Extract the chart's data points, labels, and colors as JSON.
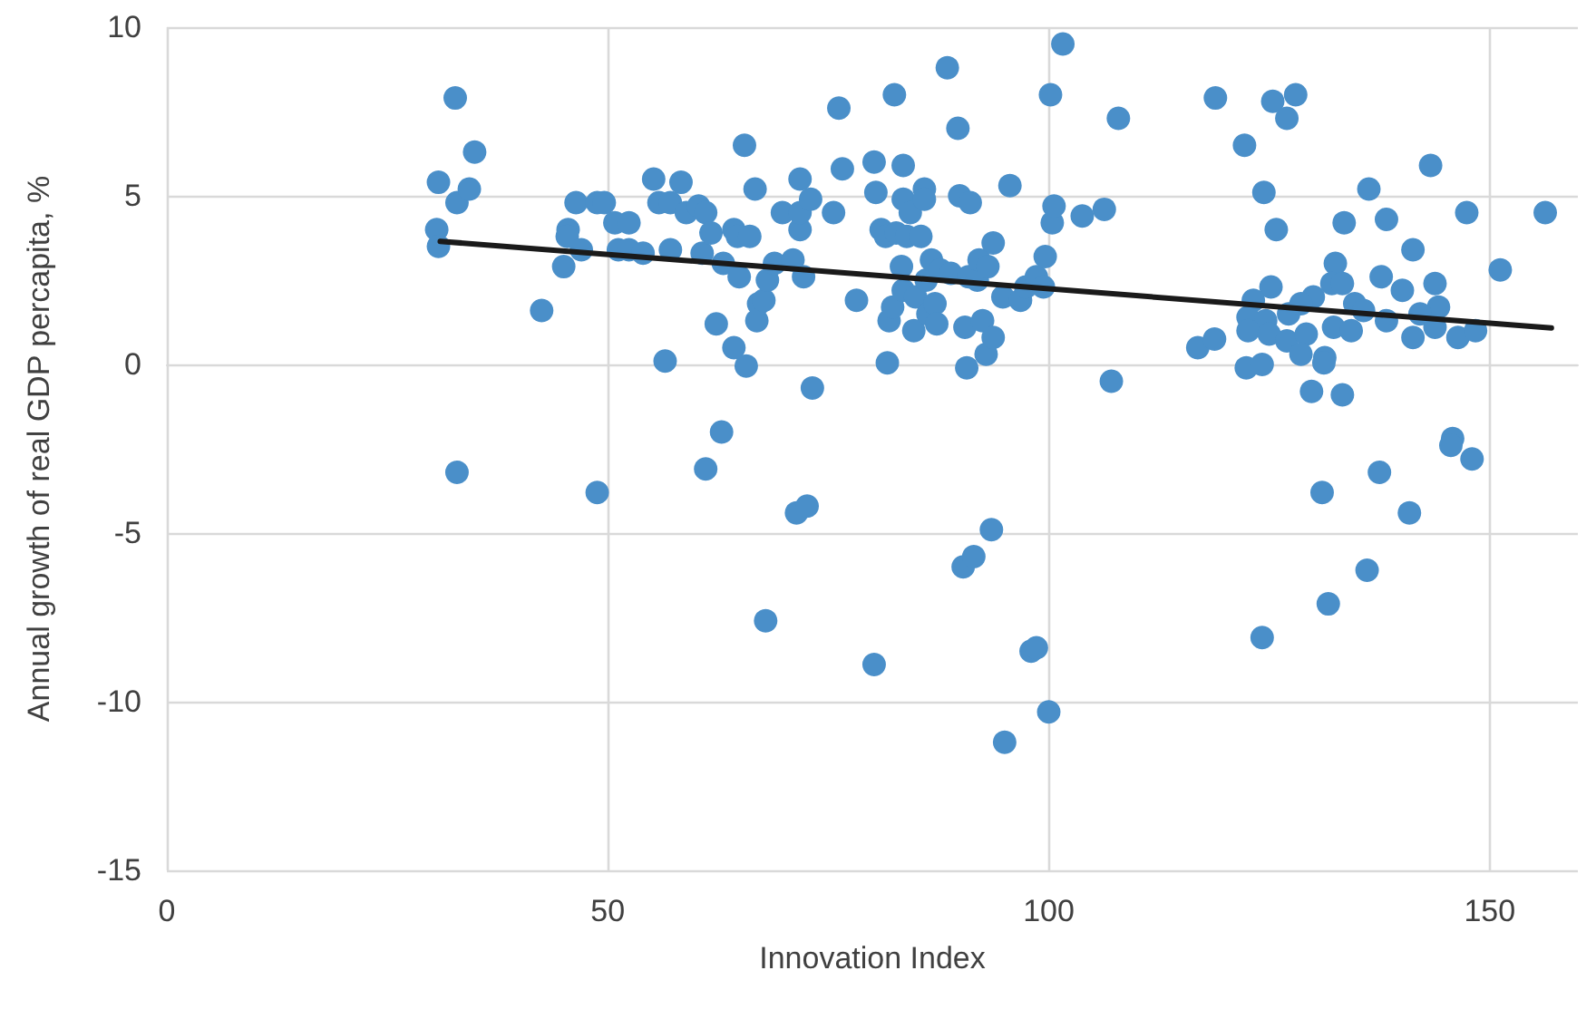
{
  "chart_data": {
    "type": "scatter",
    "xlabel": "Innovation Index",
    "ylabel": "Annual growth of real GDP percapita, %",
    "xlim": [
      0,
      160
    ],
    "xticks": [
      0,
      50,
      100,
      150
    ],
    "ylim": [
      -15,
      10
    ],
    "yticks": [
      -15,
      -10,
      -5,
      0,
      5,
      10
    ],
    "grid": true,
    "marker": "circle",
    "series": [
      {
        "color": "#4a8fc9",
        "x": [
          30.8,
          30.6,
          30.8,
          32.7,
          32.9,
          32.9,
          34.3,
          34.9,
          42.5,
          45.0,
          45.5,
          45.4,
          46.4,
          47.0,
          48.8,
          48.8,
          49.6,
          50.8,
          51.2,
          52.4,
          52.4,
          54.0,
          55.2,
          55.8,
          56.5,
          57.1,
          57.1,
          58.3,
          58.9,
          60.3,
          61.1,
          60.7,
          61.1,
          61.7,
          62.3,
          62.9,
          63.1,
          64.3,
          64.7,
          64.9,
          64.3,
          65.5,
          65.7,
          66.1,
          66.7,
          66.9,
          67.1,
          67.7,
          68.1,
          67.9,
          68.9,
          69.8,
          71.0,
          71.4,
          71.8,
          71.8,
          71.8,
          72.2,
          72.6,
          73.0,
          73.2,
          75.6,
          76.2,
          76.6,
          78.2,
          80.2,
          80.2,
          80.4,
          81.0,
          81.5,
          81.7,
          81.9,
          82.5,
          82.3,
          82.7,
          83.5,
          83.5,
          83.3,
          83.5,
          83.9,
          84.3,
          84.7,
          84.9,
          85.5,
          85.9,
          85.9,
          86.1,
          86.3,
          86.7,
          87.1,
          87.3,
          87.7,
          88.5,
          88.9,
          89.7,
          89.9,
          90.3,
          90.5,
          90.7,
          91.5,
          91.1,
          90.9,
          91.9,
          92.1,
          92.5,
          92.9,
          93.1,
          93.5,
          93.7,
          93.7,
          94.8,
          95.0,
          95.6,
          96.8,
          97.4,
          98.0,
          98.6,
          98.6,
          99.4,
          99.6,
          100.0,
          100.2,
          100.4,
          100.6,
          101.6,
          103.8,
          106.3,
          107.1,
          107.9,
          118.9,
          125.4,
          128.0,
          127.0,
          122.2,
          143.3,
          124.4,
          136.3,
          133.5,
          138.3,
          125.8,
          147.4,
          156.3,
          151.2,
          141.3,
          132.5,
          132.1,
          133.3,
          137.7,
          143.8,
          140.1,
          125.2,
          123.2,
          130.0,
          134.7,
          135.7,
          144.2,
          142.1,
          127.2,
          128.6,
          122.6,
          124.6,
          122.6,
          125.0,
          127.0,
          129.2,
          132.3,
          134.3,
          138.3,
          141.3,
          143.8,
          146.4,
          148.4,
          116.9,
          118.8,
          122.4,
          124.2,
          128.6,
          131.3,
          131.2,
          129.8,
          133.3,
          145.8,
          145.6,
          148.0,
          137.5,
          131.0,
          140.9,
          136.1,
          131.7,
          124.2
        ],
        "values": [
          5.4,
          4.0,
          3.5,
          7.9,
          4.8,
          -3.2,
          5.2,
          6.3,
          1.6,
          2.9,
          4.0,
          3.8,
          4.8,
          3.4,
          -3.8,
          4.8,
          4.8,
          4.2,
          3.4,
          4.2,
          3.4,
          3.3,
          5.5,
          4.8,
          0.1,
          3.4,
          4.8,
          5.4,
          4.5,
          4.7,
          4.5,
          3.3,
          -3.1,
          3.9,
          1.2,
          -2.0,
          3.0,
          4.0,
          3.8,
          2.6,
          0.5,
          6.5,
          -0.05,
          3.8,
          5.2,
          1.3,
          1.8,
          1.9,
          2.5,
          -7.6,
          3.0,
          4.5,
          3.1,
          -4.4,
          4.0,
          5.5,
          4.5,
          2.6,
          -4.2,
          4.9,
          -0.7,
          4.5,
          7.6,
          5.8,
          1.9,
          -8.9,
          6.0,
          5.1,
          4.0,
          3.8,
          0.05,
          1.3,
          8.0,
          1.7,
          3.9,
          5.9,
          4.9,
          2.9,
          2.2,
          3.8,
          4.5,
          1.0,
          2.0,
          3.8,
          5.2,
          4.9,
          2.5,
          1.5,
          3.1,
          1.8,
          1.2,
          2.8,
          8.8,
          2.7,
          7.0,
          5.0,
          -6.0,
          1.1,
          -0.1,
          -5.7,
          4.8,
          2.6,
          2.5,
          3.1,
          1.3,
          0.3,
          2.9,
          -4.9,
          0.8,
          3.6,
          2.0,
          -11.2,
          5.3,
          1.9,
          2.3,
          -8.5,
          -8.4,
          2.6,
          2.3,
          3.2,
          -10.3,
          8.0,
          4.2,
          4.7,
          9.5,
          4.4,
          4.6,
          -0.5,
          7.3,
          7.9,
          7.8,
          8.0,
          7.3,
          6.5,
          5.9,
          5.1,
          5.2,
          4.2,
          4.3,
          4.0,
          4.5,
          4.5,
          2.8,
          3.4,
          3.0,
          2.4,
          2.4,
          2.6,
          2.4,
          2.2,
          2.3,
          1.9,
          2.0,
          1.8,
          1.6,
          1.7,
          1.5,
          1.5,
          1.8,
          1.4,
          1.3,
          1.0,
          0.9,
          0.7,
          0.9,
          1.1,
          1.0,
          1.3,
          0.8,
          1.1,
          0.8,
          1.0,
          0.5,
          0.75,
          -0.1,
          0.0,
          0.3,
          0.2,
          0.05,
          -0.8,
          -0.9,
          -2.2,
          -2.4,
          -2.8,
          -3.2,
          -3.8,
          -4.4,
          -6.1,
          -7.1,
          -8.1
        ]
      },
      {
        "type": "line",
        "color": "#1a1a1a",
        "marker": "none",
        "line_style": "solid",
        "x": [
          31,
          157
        ],
        "values": [
          3.65,
          1.08
        ]
      }
    ]
  }
}
